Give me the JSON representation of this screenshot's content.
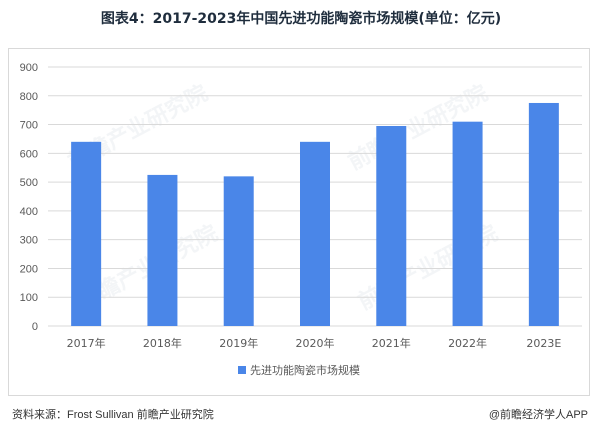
{
  "title": "图表4：2017-2023年中国先进功能陶瓷市场规模(单位：亿元)",
  "source": "资料来源：Frost Sullivan 前瞻产业研究院",
  "brand": "@前瞻经济学人APP",
  "watermark": "前瞻产业研究院",
  "colors": {
    "bar": "#4a86e8",
    "grid": "#d9d9d9",
    "axis_text": "#595959"
  },
  "chart_data": {
    "type": "bar",
    "title": "图表4：2017-2023年中国先进功能陶瓷市场规模(单位：亿元)",
    "categories": [
      "2017年",
      "2018年",
      "2019年",
      "2020年",
      "2021年",
      "2022年",
      "2023E"
    ],
    "series": [
      {
        "name": "先进功能陶瓷市场规模",
        "values": [
          640,
          525,
          520,
          640,
          695,
          710,
          775
        ]
      }
    ],
    "ylim": [
      0,
      900
    ],
    "yticks": [
      0,
      100,
      200,
      300,
      400,
      500,
      600,
      700,
      800,
      900
    ],
    "grid": true,
    "legend": "bottom-center"
  }
}
